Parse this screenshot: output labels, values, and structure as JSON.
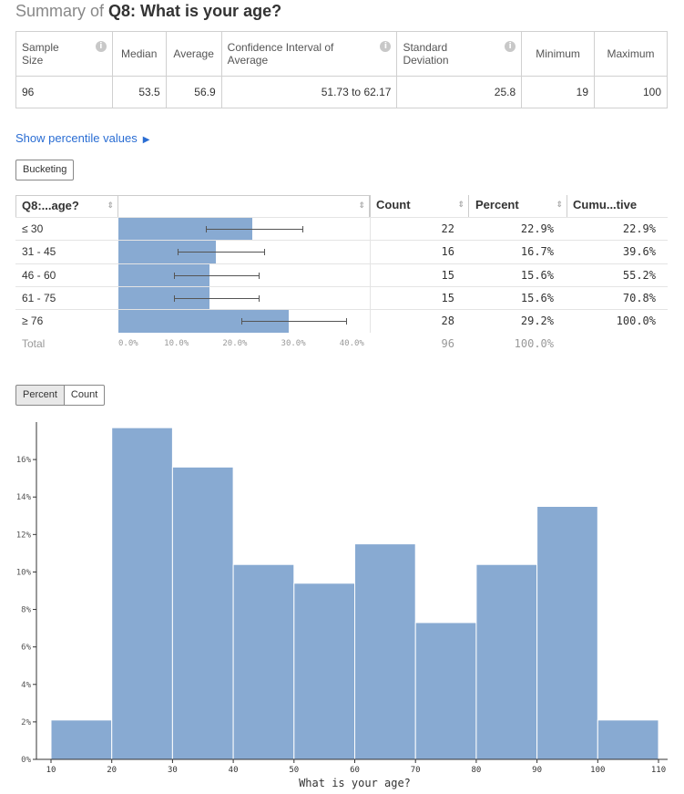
{
  "title": {
    "prefix": "Summary of",
    "question": "Q8: What is your age?"
  },
  "summary": {
    "headers": [
      "Sample Size",
      "Median",
      "Average",
      "Confidence Interval of Average",
      "Standard Deviation",
      "Minimum",
      "Maximum"
    ],
    "values": [
      "96",
      "53.5",
      "56.9",
      "51.73 to 62.17",
      "25.8",
      "19",
      "100"
    ]
  },
  "percentile_link": "Show percentile values",
  "bucketing_button": "Bucketing",
  "bucket_table": {
    "headers": {
      "label": "Q8:...age?",
      "count": "Count",
      "percent": "Percent",
      "cumulative": "Cumu...tive"
    },
    "rows": [
      {
        "label": "≤ 30",
        "count": "22",
        "percent": "22.9%",
        "cumulative": "22.9%",
        "value": 22.9,
        "ci": [
          15.0,
          31.5
        ]
      },
      {
        "label": "31 - 45",
        "count": "16",
        "percent": "16.7%",
        "cumulative": "39.6%",
        "value": 16.7,
        "ci": [
          10.2,
          25.0
        ]
      },
      {
        "label": "46 - 60",
        "count": "15",
        "percent": "15.6%",
        "cumulative": "55.2%",
        "value": 15.6,
        "ci": [
          9.5,
          24.0
        ]
      },
      {
        "label": "61 - 75",
        "count": "15",
        "percent": "15.6%",
        "cumulative": "70.8%",
        "value": 15.6,
        "ci": [
          9.5,
          24.0
        ]
      },
      {
        "label": "≥ 76",
        "count": "28",
        "percent": "29.2%",
        "cumulative": "100.0%",
        "value": 29.2,
        "ci": [
          21.0,
          39.0
        ]
      }
    ],
    "axis_ticks": [
      "0.0%",
      "10.0%",
      "20.0%",
      "30.0%",
      "40.0%"
    ],
    "axis_max": 43,
    "total": {
      "label": "Total",
      "count": "96",
      "percent": "100.0%"
    }
  },
  "toggle": {
    "percent": "Percent",
    "count": "Count"
  },
  "colors": {
    "bar": "#88aad2",
    "ci_line": "#555555",
    "link": "#2a6dd3"
  },
  "chart_data": {
    "type": "bar",
    "xlabel": "What is your age?",
    "ylabel": "",
    "bins": [
      [
        10,
        20
      ],
      [
        20,
        30
      ],
      [
        30,
        40
      ],
      [
        40,
        50
      ],
      [
        50,
        60
      ],
      [
        60,
        70
      ],
      [
        70,
        80
      ],
      [
        80,
        90
      ],
      [
        90,
        100
      ],
      [
        100,
        110
      ]
    ],
    "values": [
      2.1,
      17.7,
      15.6,
      10.4,
      9.4,
      11.5,
      7.3,
      10.4,
      13.5,
      2.1
    ],
    "x_ticks": [
      "10",
      "20",
      "30",
      "40",
      "50",
      "60",
      "70",
      "80",
      "90",
      "100",
      "110"
    ],
    "y_ticks": [
      "0%",
      "2%",
      "4%",
      "6%",
      "8%",
      "10%",
      "12%",
      "14%",
      "16%"
    ],
    "xlim": [
      10,
      110
    ],
    "ylim": [
      0,
      18
    ]
  }
}
